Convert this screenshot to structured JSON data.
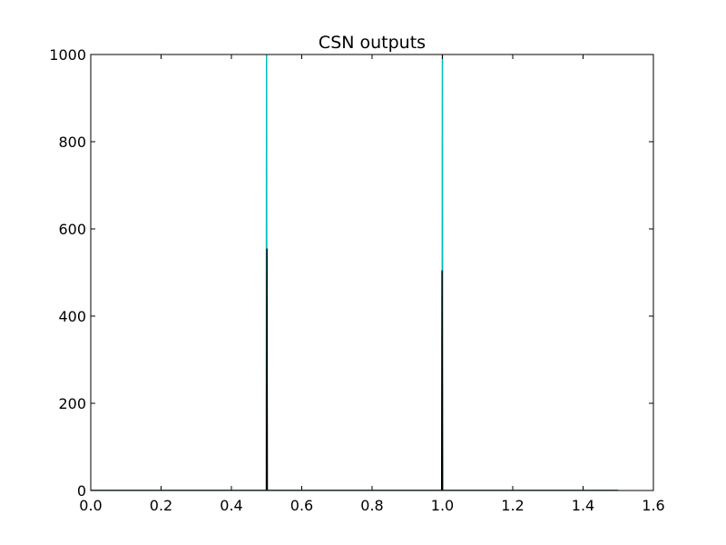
{
  "chart_data": {
    "type": "line",
    "title": "CSN outputs",
    "xlabel": "",
    "ylabel": "",
    "xlim": [
      0.0,
      1.6
    ],
    "ylim": [
      0,
      1000
    ],
    "x_ticks": [
      0.0,
      0.2,
      0.4,
      0.6,
      0.8,
      1.0,
      1.2,
      1.4,
      1.6
    ],
    "x_tick_labels": [
      "0.0",
      "0.2",
      "0.4",
      "0.6",
      "0.8",
      "1.0",
      "1.2",
      "1.4",
      "1.6"
    ],
    "y_ticks": [
      0,
      200,
      400,
      600,
      800,
      1000
    ],
    "y_tick_labels": [
      "0",
      "200",
      "400",
      "600",
      "800",
      "1000"
    ],
    "grid": false,
    "legend": "none",
    "series": [
      {
        "color": "#00bfbf",
        "x": [
          0.0,
          0.499,
          0.5,
          0.501,
          0.999,
          1.0,
          1.001,
          1.5
        ],
        "y": [
          0,
          0,
          1000,
          0,
          0,
          1000,
          0,
          0
        ]
      },
      {
        "color": "#000000",
        "x": [
          0.0,
          0.5,
          0.501,
          0.502,
          0.998,
          0.999,
          1.0,
          1.5
        ],
        "y": [
          0,
          0,
          555,
          0,
          0,
          505,
          0,
          0
        ]
      }
    ]
  }
}
